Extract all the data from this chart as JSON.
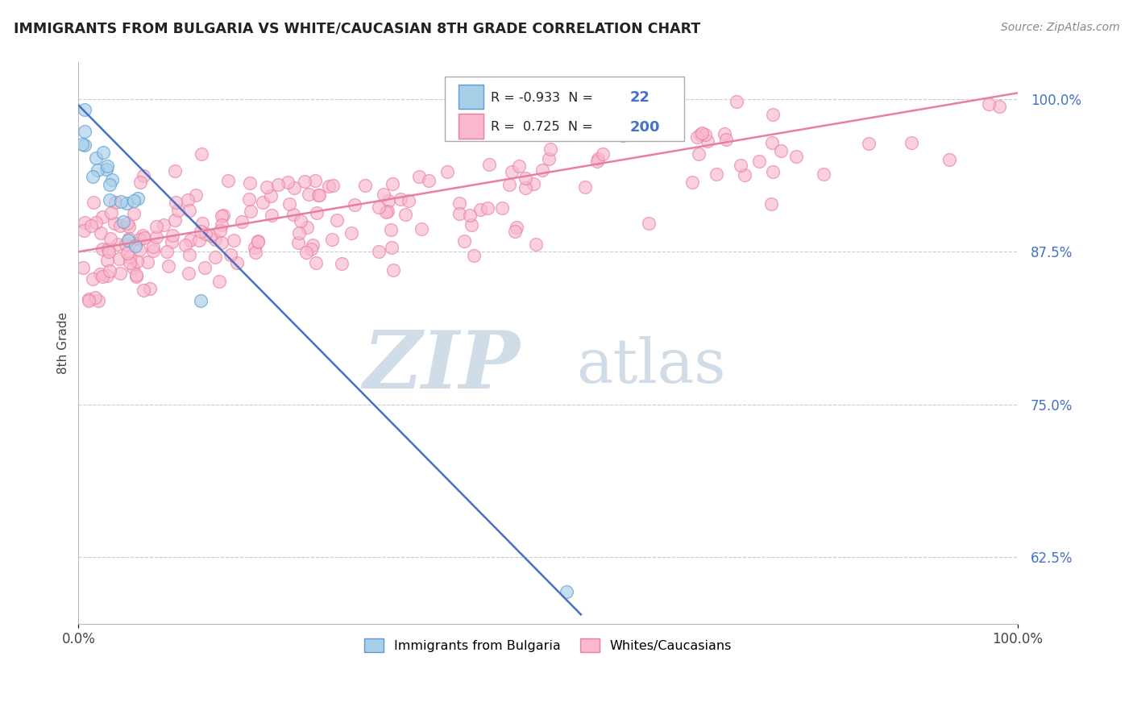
{
  "title": "IMMIGRANTS FROM BULGARIA VS WHITE/CAUCASIAN 8TH GRADE CORRELATION CHART",
  "source_text": "Source: ZipAtlas.com",
  "ylabel": "8th Grade",
  "xlim": [
    0.0,
    1.0
  ],
  "ylim": [
    0.57,
    1.03
  ],
  "yticks": [
    0.625,
    0.75,
    0.875,
    1.0
  ],
  "ytick_labels": [
    "62.5%",
    "75.0%",
    "87.5%",
    "100.0%"
  ],
  "xticks": [
    0.0,
    1.0
  ],
  "xtick_labels": [
    "0.0%",
    "100.0%"
  ],
  "legend_r_blue": "-0.933",
  "legend_n_blue": "22",
  "legend_r_pink": "0.725",
  "legend_n_pink": "200",
  "blue_color": "#a8cfe8",
  "pink_color": "#f9b8cb",
  "blue_edge_color": "#5b9bd5",
  "pink_edge_color": "#e87fa0",
  "blue_line_color": "#4472c4",
  "pink_line_color": "#e87fa0",
  "watermark_zip_color": "#d0dce8",
  "watermark_atlas_color": "#d0dce8",
  "background_color": "#ffffff",
  "grid_color": "#cccccc",
  "blue_line_x0": 0.0,
  "blue_line_y0": 0.995,
  "blue_line_x1": 0.535,
  "blue_line_y1": 0.578,
  "pink_line_x0": 0.0,
  "pink_line_y0": 0.875,
  "pink_line_x1": 1.0,
  "pink_line_y1": 1.005
}
